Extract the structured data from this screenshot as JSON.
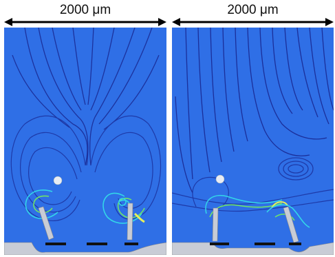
{
  "figure": {
    "panels": [
      {
        "id": "left",
        "scale_label": "2000 μm",
        "description_icon": "streamline-flow-field"
      },
      {
        "id": "right",
        "scale_label": "2000 μm",
        "description_icon": "streamline-flow-field"
      }
    ],
    "colors": {
      "background_field": "#2f6fe6",
      "streamline_dark": "#1b2f9a",
      "streamline_cyan": "#33d6e8",
      "streamline_green": "#6fe36a",
      "streamline_yellow": "#e8ef5a",
      "structure": "#c8ccd6",
      "electrode": "#111111"
    }
  }
}
